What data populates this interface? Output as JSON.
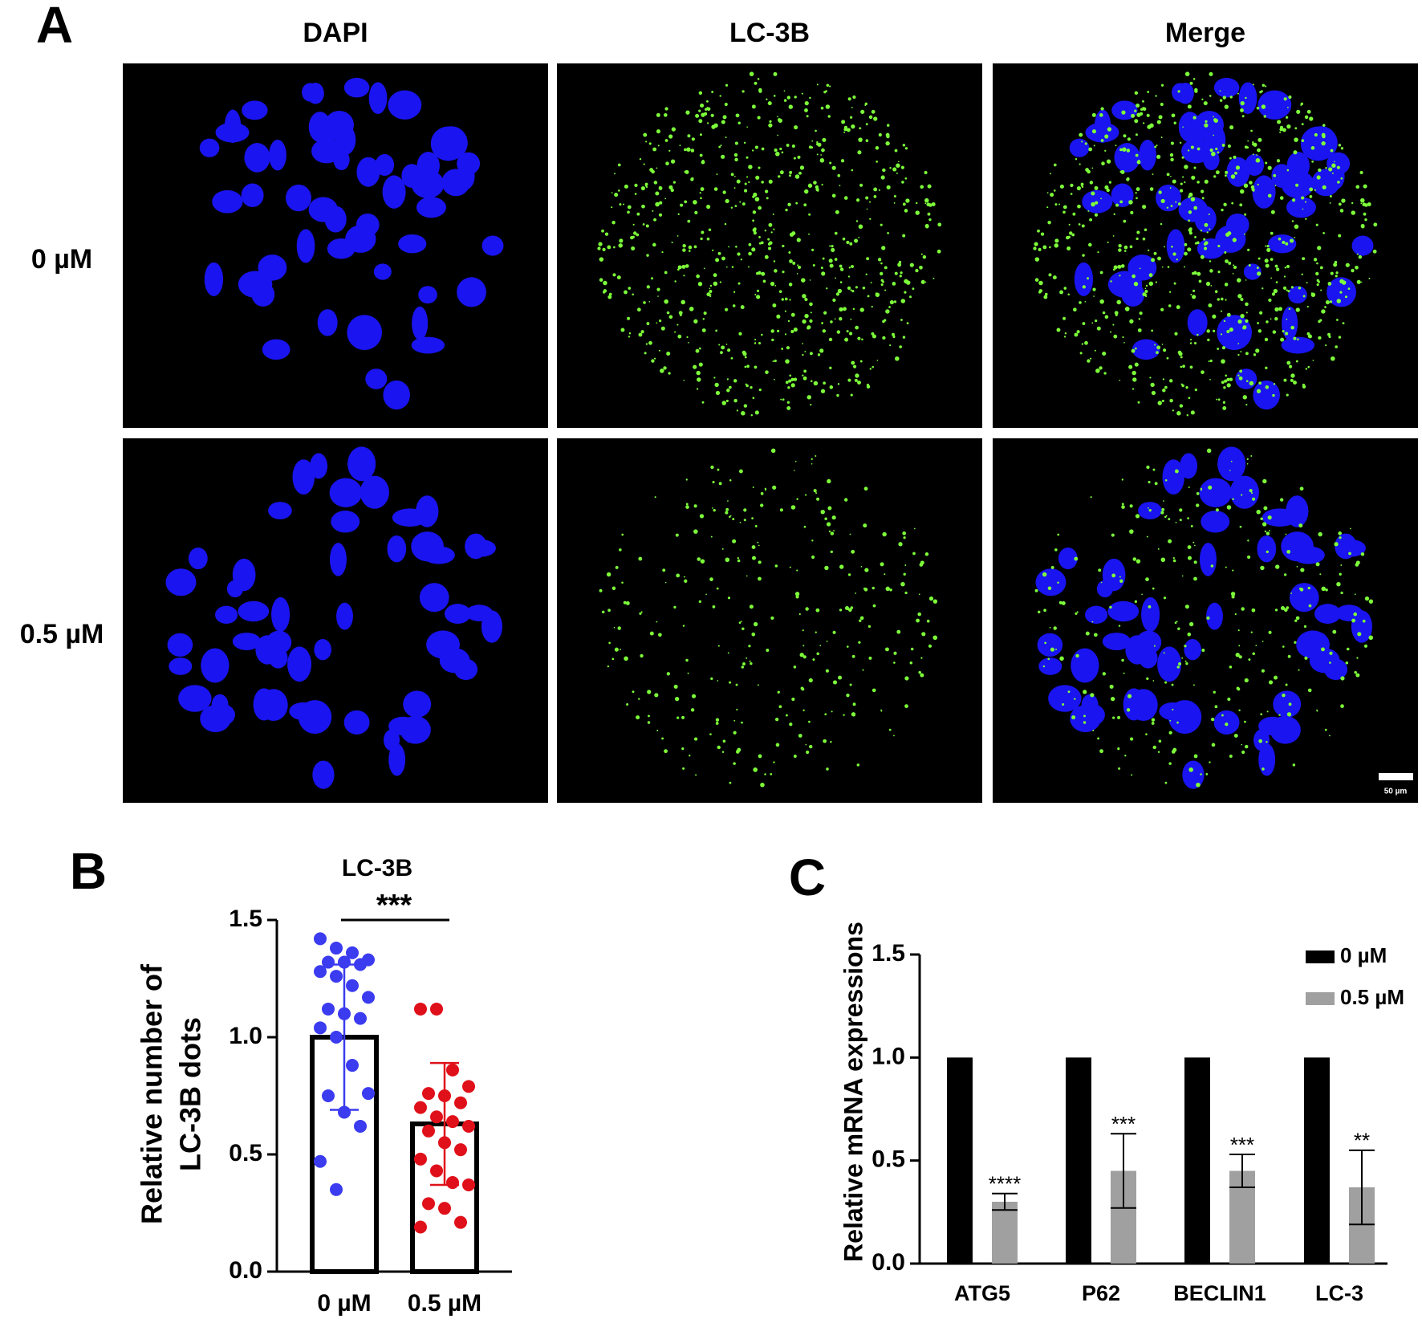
{
  "panel_a": {
    "label": "A",
    "columns": [
      "DAPI",
      "LC-3B",
      "Merge"
    ],
    "rows": [
      "0 µM",
      "0.5 µM"
    ],
    "scale_bar": "50 µm"
  },
  "chart_data": [
    {
      "type": "bar_scatter",
      "label": "B",
      "title": "LC-3B",
      "significance": "***",
      "ylabel": [
        "Relative number of",
        "LC-3B dots"
      ],
      "categories": [
        "0 µM",
        "0.5 µM"
      ],
      "values": [
        1.0,
        0.63
      ],
      "errors": [
        0.31,
        0.26
      ],
      "points": [
        {
          "color": "#3b3bef",
          "values": [
            1.42,
            1.38,
            1.36,
            1.33,
            1.32,
            1.32,
            1.31,
            1.28,
            1.26,
            1.22,
            1.17,
            1.12,
            1.1,
            1.08,
            1.04,
            1.0,
            0.88,
            0.76,
            0.75,
            0.68,
            0.62,
            0.47,
            0.35
          ]
        },
        {
          "color": "#e0101a",
          "values": [
            1.12,
            1.12,
            0.86,
            0.79,
            0.76,
            0.75,
            0.72,
            0.7,
            0.66,
            0.64,
            0.62,
            0.6,
            0.55,
            0.52,
            0.48,
            0.43,
            0.38,
            0.37,
            0.29,
            0.27,
            0.21,
            0.19
          ]
        }
      ],
      "ylim": [
        0,
        1.5
      ],
      "yticks": [
        {
          "value": 0,
          "label": "0.0"
        },
        0.5,
        {
          "value": 1,
          "label": "1.0"
        },
        1.5
      ]
    },
    {
      "type": "grouped_bar",
      "label": "C",
      "ylabel": "Relative mRNA expressions",
      "categories": [
        "ATG5",
        "P62",
        "BECLIN1",
        "LC-3"
      ],
      "series": [
        {
          "name": "0 µM",
          "color": "#000000",
          "values": [
            1,
            1,
            1,
            1
          ]
        },
        {
          "name": "0.5 µM",
          "color": "#a0a0a0",
          "values": [
            0.3,
            0.45,
            0.45,
            0.37
          ],
          "errors": [
            0.04,
            0.18,
            0.08,
            0.18
          ],
          "significance": [
            "****",
            "***",
            "***",
            "**"
          ]
        }
      ],
      "ylim": [
        0,
        1.5
      ],
      "yticks": [
        {
          "value": 0,
          "label": "0.0"
        },
        0.5,
        {
          "value": 1,
          "label": "1.0"
        },
        1.5
      ],
      "legend": "top-right"
    }
  ]
}
